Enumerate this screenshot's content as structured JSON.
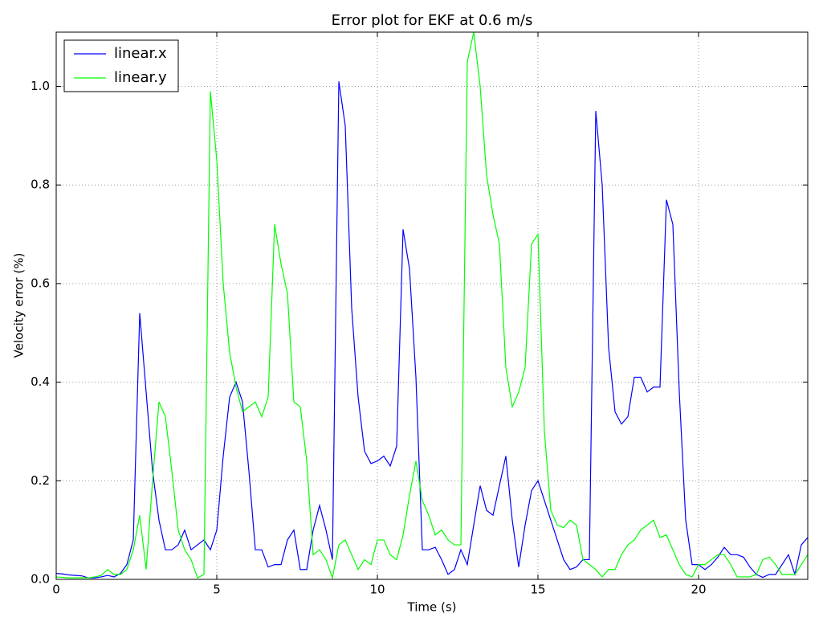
{
  "chart_data": {
    "type": "line",
    "title": "Error plot for EKF at 0.6 m/s",
    "xlabel": "Time (s)",
    "ylabel": "Velocity error (%)",
    "x": [
      0,
      0.2,
      0.4,
      0.6,
      0.8,
      1,
      1.2,
      1.4,
      1.6,
      1.8,
      2,
      2.2,
      2.4,
      2.6,
      2.8,
      3,
      3.2,
      3.4,
      3.6,
      3.8,
      4,
      4.2,
      4.4,
      4.6,
      4.8,
      5,
      5.2,
      5.4,
      5.6,
      5.8,
      6,
      6.2,
      6.4,
      6.6,
      6.8,
      7,
      7.2,
      7.4,
      7.6,
      7.8,
      8,
      8.2,
      8.4,
      8.6,
      8.8,
      9,
      9.2,
      9.4,
      9.6,
      9.8,
      10,
      10.2,
      10.4,
      10.6,
      10.8,
      11,
      11.2,
      11.4,
      11.6,
      11.8,
      12,
      12.2,
      12.4,
      12.6,
      12.8,
      13,
      13.2,
      13.4,
      13.6,
      13.8,
      14,
      14.2,
      14.4,
      14.6,
      14.8,
      15,
      15.2,
      15.4,
      15.6,
      15.8,
      16,
      16.2,
      16.4,
      16.6,
      16.8,
      17,
      17.2,
      17.4,
      17.6,
      17.8,
      18,
      18.2,
      18.4,
      18.6,
      18.8,
      19,
      19.2,
      19.4,
      19.6,
      19.8,
      20,
      20.2,
      20.4,
      20.6,
      20.8,
      21,
      21.2,
      21.4,
      21.6,
      21.8,
      22,
      22.2,
      22.4,
      22.6,
      22.8,
      23,
      23.2,
      23.4
    ],
    "series": [
      {
        "name": "linear.x",
        "color": "#0000ff",
        "values": [
          0.012,
          0.011,
          0.009,
          0.008,
          0.007,
          0.003,
          0.003,
          0.005,
          0.008,
          0.005,
          0.012,
          0.03,
          0.08,
          0.54,
          0.38,
          0.22,
          0.12,
          0.06,
          0.06,
          0.07,
          0.1,
          0.06,
          0.07,
          0.08,
          0.06,
          0.1,
          0.25,
          0.37,
          0.4,
          0.36,
          0.22,
          0.06,
          0.06,
          0.025,
          0.03,
          0.03,
          0.08,
          0.1,
          0.02,
          0.02,
          0.1,
          0.15,
          0.1,
          0.04,
          1.01,
          0.92,
          0.55,
          0.37,
          0.26,
          0.235,
          0.24,
          0.25,
          0.23,
          0.27,
          0.71,
          0.63,
          0.41,
          0.06,
          0.06,
          0.065,
          0.04,
          0.01,
          0.02,
          0.06,
          0.03,
          0.11,
          0.19,
          0.14,
          0.13,
          0.19,
          0.25,
          0.12,
          0.025,
          0.11,
          0.18,
          0.2,
          0.16,
          0.12,
          0.08,
          0.04,
          0.02,
          0.025,
          0.04,
          0.04,
          0.95,
          0.8,
          0.47,
          0.34,
          0.315,
          0.33,
          0.41,
          0.41,
          0.38,
          0.39,
          0.39,
          0.77,
          0.72,
          0.38,
          0.12,
          0.03,
          0.03,
          0.02,
          0.03,
          0.045,
          0.065,
          0.05,
          0.05,
          0.045,
          0.025,
          0.01,
          0.004,
          0.01,
          0.01,
          0.03,
          0.05,
          0.01,
          0.07,
          0.085
        ]
      },
      {
        "name": "linear.y",
        "color": "#00ff00",
        "values": [
          0.005,
          0.004,
          0.003,
          0.003,
          0.003,
          0.003,
          0.005,
          0.008,
          0.02,
          0.01,
          0.01,
          0.02,
          0.06,
          0.13,
          0.02,
          0.2,
          0.36,
          0.33,
          0.22,
          0.1,
          0.06,
          0.04,
          0.003,
          0.01,
          0.99,
          0.85,
          0.6,
          0.46,
          0.39,
          0.34,
          0.35,
          0.36,
          0.33,
          0.37,
          0.72,
          0.64,
          0.58,
          0.36,
          0.35,
          0.24,
          0.05,
          0.06,
          0.04,
          0.003,
          0.07,
          0.08,
          0.05,
          0.02,
          0.04,
          0.03,
          0.08,
          0.08,
          0.05,
          0.04,
          0.09,
          0.17,
          0.24,
          0.16,
          0.13,
          0.09,
          0.1,
          0.08,
          0.07,
          0.07,
          1.05,
          1.11,
          1.0,
          0.82,
          0.74,
          0.68,
          0.43,
          0.35,
          0.38,
          0.43,
          0.68,
          0.7,
          0.3,
          0.14,
          0.11,
          0.105,
          0.12,
          0.11,
          0.04,
          0.03,
          0.02,
          0.005,
          0.02,
          0.02,
          0.05,
          0.07,
          0.08,
          0.1,
          0.11,
          0.12,
          0.085,
          0.09,
          0.06,
          0.03,
          0.01,
          0.005,
          0.03,
          0.03,
          0.04,
          0.05,
          0.05,
          0.03,
          0.005,
          0.005,
          0.005,
          0.01,
          0.04,
          0.045,
          0.03,
          0.01,
          0.01,
          0.01,
          0.03,
          0.05
        ]
      }
    ],
    "xlim": [
      0,
      23.4
    ],
    "ylim": [
      0,
      1.11
    ],
    "xticks": [
      0,
      5,
      10,
      15,
      20
    ],
    "yticks": [
      {
        "value": 0,
        "label": "0.0"
      },
      {
        "value": 0.2,
        "label": "0.2"
      },
      {
        "value": 0.4,
        "label": "0.4"
      },
      {
        "value": 0.6,
        "label": "0.6"
      },
      {
        "value": 0.8,
        "label": "0.8"
      },
      {
        "value": 1.0,
        "label": "1.0"
      }
    ],
    "grid": true,
    "legend": "upper-left"
  }
}
